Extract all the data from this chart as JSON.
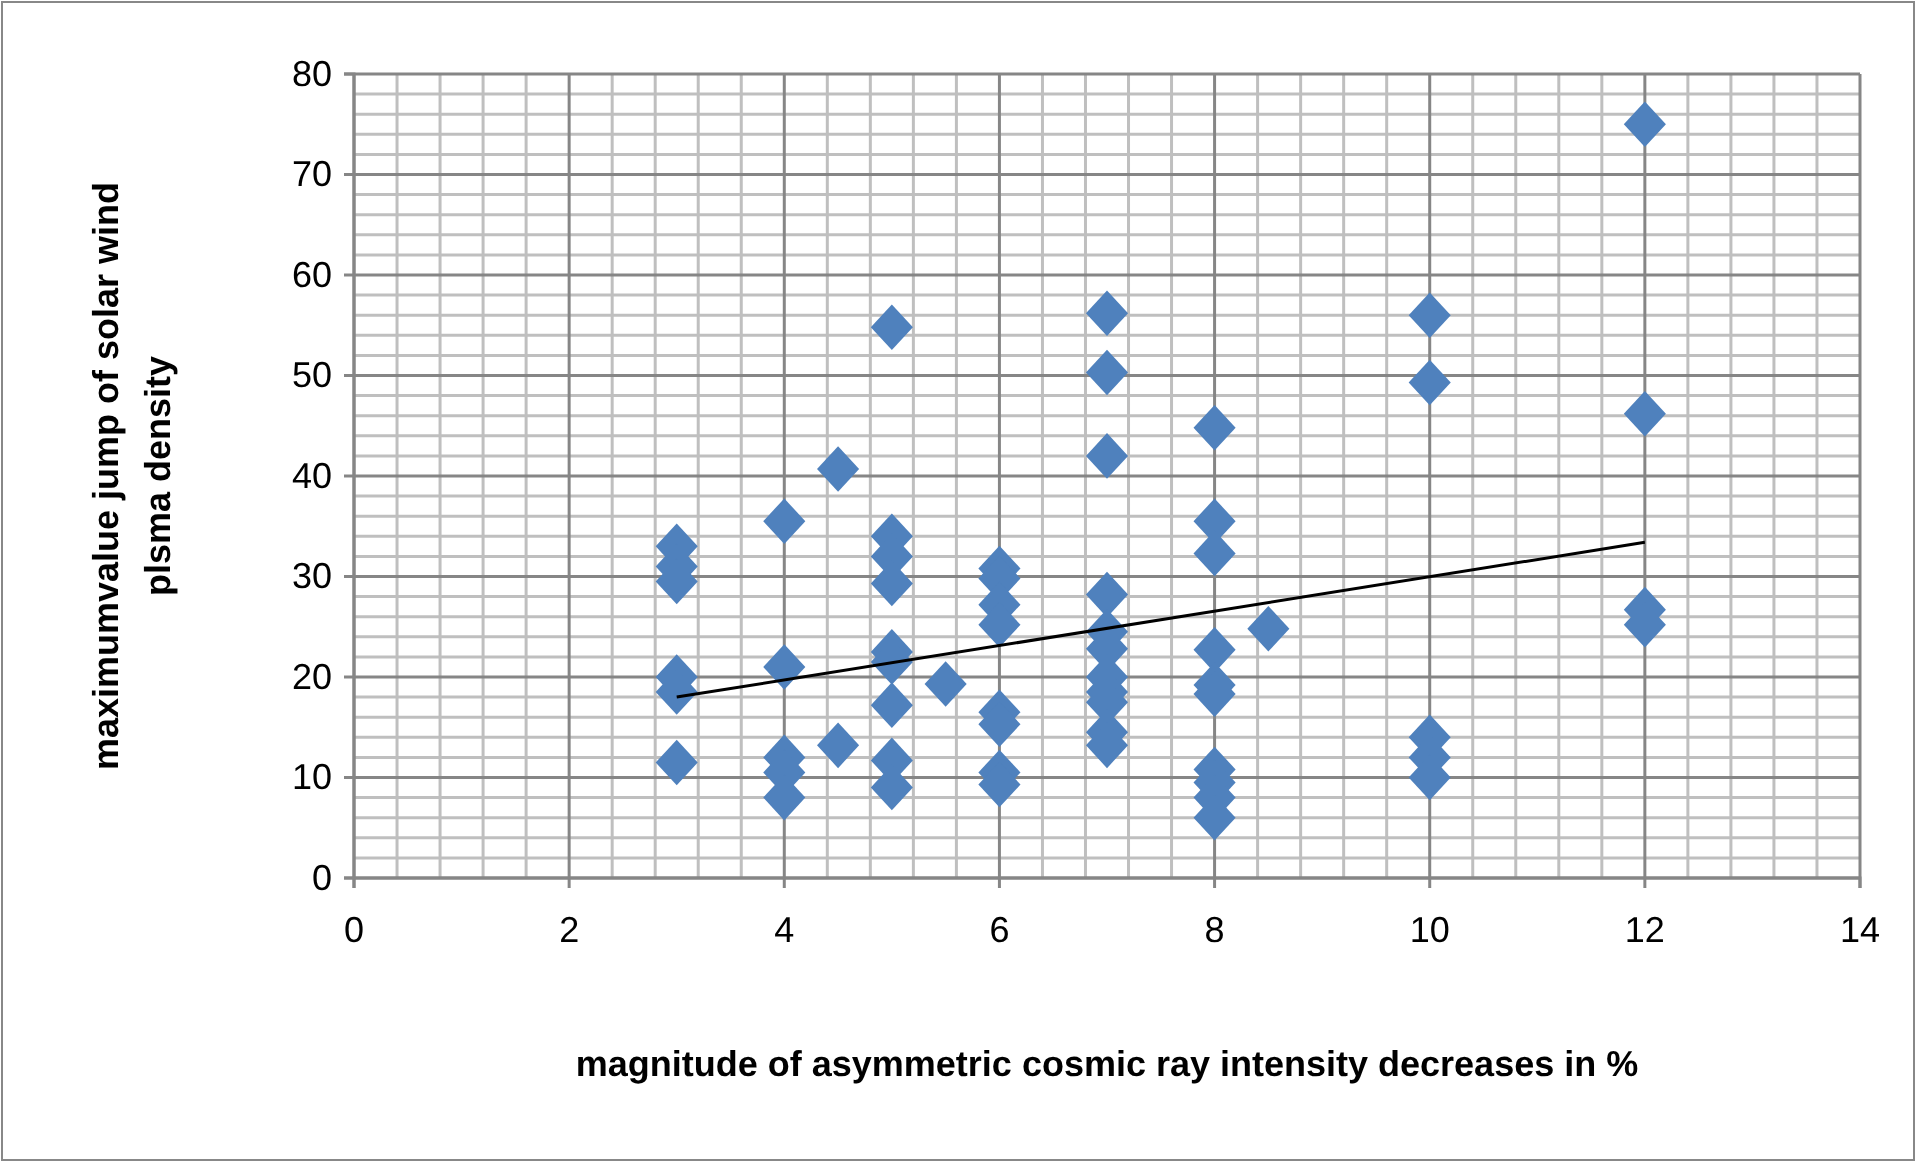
{
  "chart_data": {
    "type": "scatter",
    "xlabel": "magnitude of asymmetric cosmic ray  intensity decreases in %",
    "ylabel": "maximumvalue jump  of solar wind plsma density",
    "xlim": [
      0,
      14
    ],
    "xticks": [
      0,
      2,
      4,
      6,
      8,
      10,
      12,
      14
    ],
    "ylim": [
      0,
      80
    ],
    "yticks": [
      0,
      10,
      20,
      30,
      40,
      50,
      60,
      70,
      80
    ],
    "grid": true,
    "series": [
      {
        "marker": "diamond",
        "color": "#4f81bd",
        "x": [
          3,
          3,
          3,
          3,
          3,
          3,
          4,
          4,
          4,
          4,
          4,
          4.5,
          4.5,
          5,
          5,
          5,
          5,
          5,
          5,
          5,
          5,
          5,
          5.5,
          6,
          6,
          6,
          6,
          6,
          6,
          6,
          6,
          7,
          7,
          7,
          7,
          7,
          7,
          7,
          7,
          7,
          7,
          7,
          8,
          8,
          8,
          8,
          8,
          8,
          8,
          8,
          8,
          8,
          8.5,
          10,
          10,
          10,
          10,
          10,
          12,
          12,
          12,
          12
        ],
        "values": [
          33,
          31,
          29.5,
          20,
          18.5,
          11.5,
          35.5,
          21,
          12,
          10.5,
          8,
          40.7,
          13.2,
          54.8,
          34,
          32,
          29.3,
          22.5,
          21.5,
          17.2,
          11.7,
          9,
          19.3,
          30.8,
          29.8,
          27.2,
          25.2,
          16.5,
          15.3,
          10.5,
          9.3,
          56.2,
          50.3,
          42,
          28.2,
          24.5,
          22.8,
          20,
          18.5,
          17.5,
          14.5,
          13.2,
          44.8,
          35.5,
          32.3,
          22.7,
          19.2,
          18.3,
          10.8,
          9.5,
          8,
          6,
          24.8,
          56,
          49.3,
          14,
          12,
          10,
          75,
          46.2,
          26.7,
          25.2
        ]
      },
      {
        "type": "line",
        "color": "#000000",
        "x": [
          3,
          12
        ],
        "values": [
          18,
          33.4
        ]
      }
    ]
  }
}
